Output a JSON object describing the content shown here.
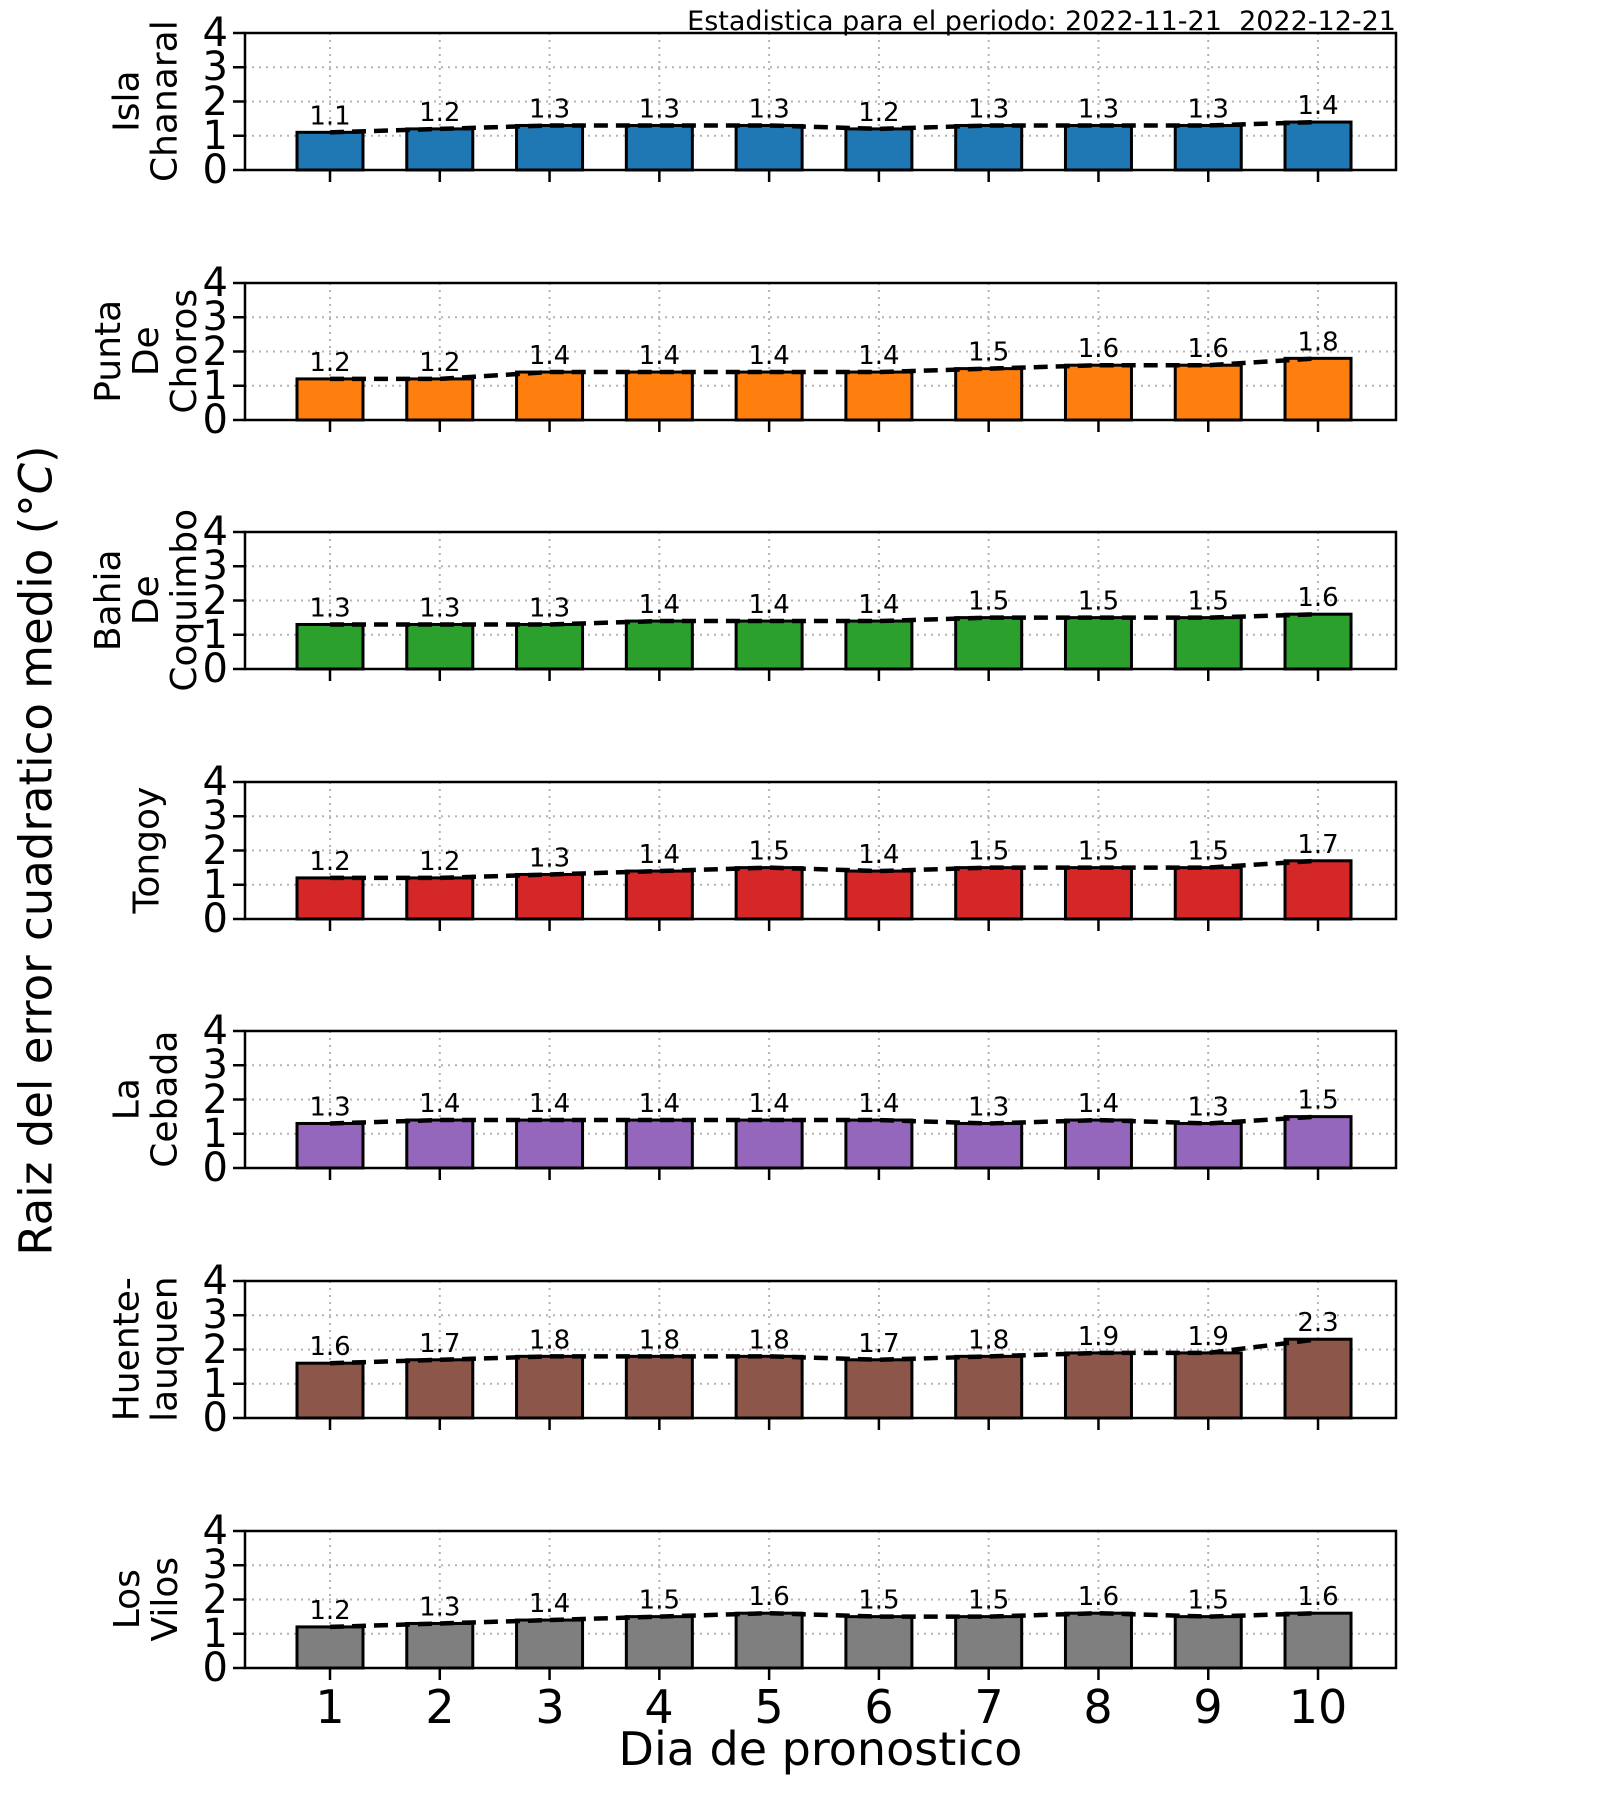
{
  "title": "Estadistica para el periodo: 2022-11-21  2022-12-21",
  "axes": {
    "ylabel": {
      "text": "Raiz del error cuadratico medio (°C)",
      "prefix": "Raiz del error cuadratico medio (°",
      "unit_italic": "C",
      "suffix": ")"
    },
    "xlabel": "Dia de pronostico"
  },
  "chart_data": {
    "type": "bar",
    "x": [
      1,
      2,
      3,
      4,
      5,
      6,
      7,
      8,
      9,
      10
    ],
    "xlabel": "Dia de pronostico",
    "ylabel": "Raiz del error cuadratico medio (°C)",
    "ylim": [
      0,
      4
    ],
    "yticks": [
      0,
      1,
      2,
      3,
      4
    ],
    "grid": true,
    "grid_style": "dotted",
    "overlay": "dashed black line tracing the same values as the bars",
    "value_labels": true,
    "bar_edge_color": "#000000",
    "series": [
      {
        "name": "Isla Chanaral",
        "label_lines": [
          "Isla",
          "Chanaral"
        ],
        "color": "#1f77b4",
        "values": [
          1.1,
          1.2,
          1.3,
          1.3,
          1.3,
          1.2,
          1.3,
          1.3,
          1.3,
          1.4
        ]
      },
      {
        "name": "Punta De Choros",
        "label_lines": [
          "Punta",
          "De",
          "Choros"
        ],
        "color": "#ff7f0e",
        "values": [
          1.2,
          1.2,
          1.4,
          1.4,
          1.4,
          1.4,
          1.5,
          1.6,
          1.6,
          1.8
        ]
      },
      {
        "name": "Bahia De Coquimbo",
        "label_lines": [
          "Bahia",
          "De",
          "Coquimbo"
        ],
        "color": "#2ca02c",
        "values": [
          1.3,
          1.3,
          1.3,
          1.4,
          1.4,
          1.4,
          1.5,
          1.5,
          1.5,
          1.6
        ]
      },
      {
        "name": "Tongoy",
        "label_lines": [
          "Tongoy"
        ],
        "color": "#d62728",
        "values": [
          1.2,
          1.2,
          1.3,
          1.4,
          1.5,
          1.4,
          1.5,
          1.5,
          1.5,
          1.7
        ]
      },
      {
        "name": "La Cebada",
        "label_lines": [
          "La",
          "Cebada"
        ],
        "color": "#9467bd",
        "values": [
          1.3,
          1.4,
          1.4,
          1.4,
          1.4,
          1.4,
          1.3,
          1.4,
          1.3,
          1.5
        ]
      },
      {
        "name": "Huente-lauquen",
        "label_lines": [
          "Huente-",
          "lauquen"
        ],
        "color": "#8c564b",
        "values": [
          1.6,
          1.7,
          1.8,
          1.8,
          1.8,
          1.7,
          1.8,
          1.9,
          1.9,
          2.3
        ]
      },
      {
        "name": "Los Vilos",
        "label_lines": [
          "Los",
          "Vilos"
        ],
        "color": "#7f7f7f",
        "values": [
          1.2,
          1.3,
          1.4,
          1.5,
          1.6,
          1.5,
          1.5,
          1.6,
          1.5,
          1.6
        ]
      }
    ]
  }
}
